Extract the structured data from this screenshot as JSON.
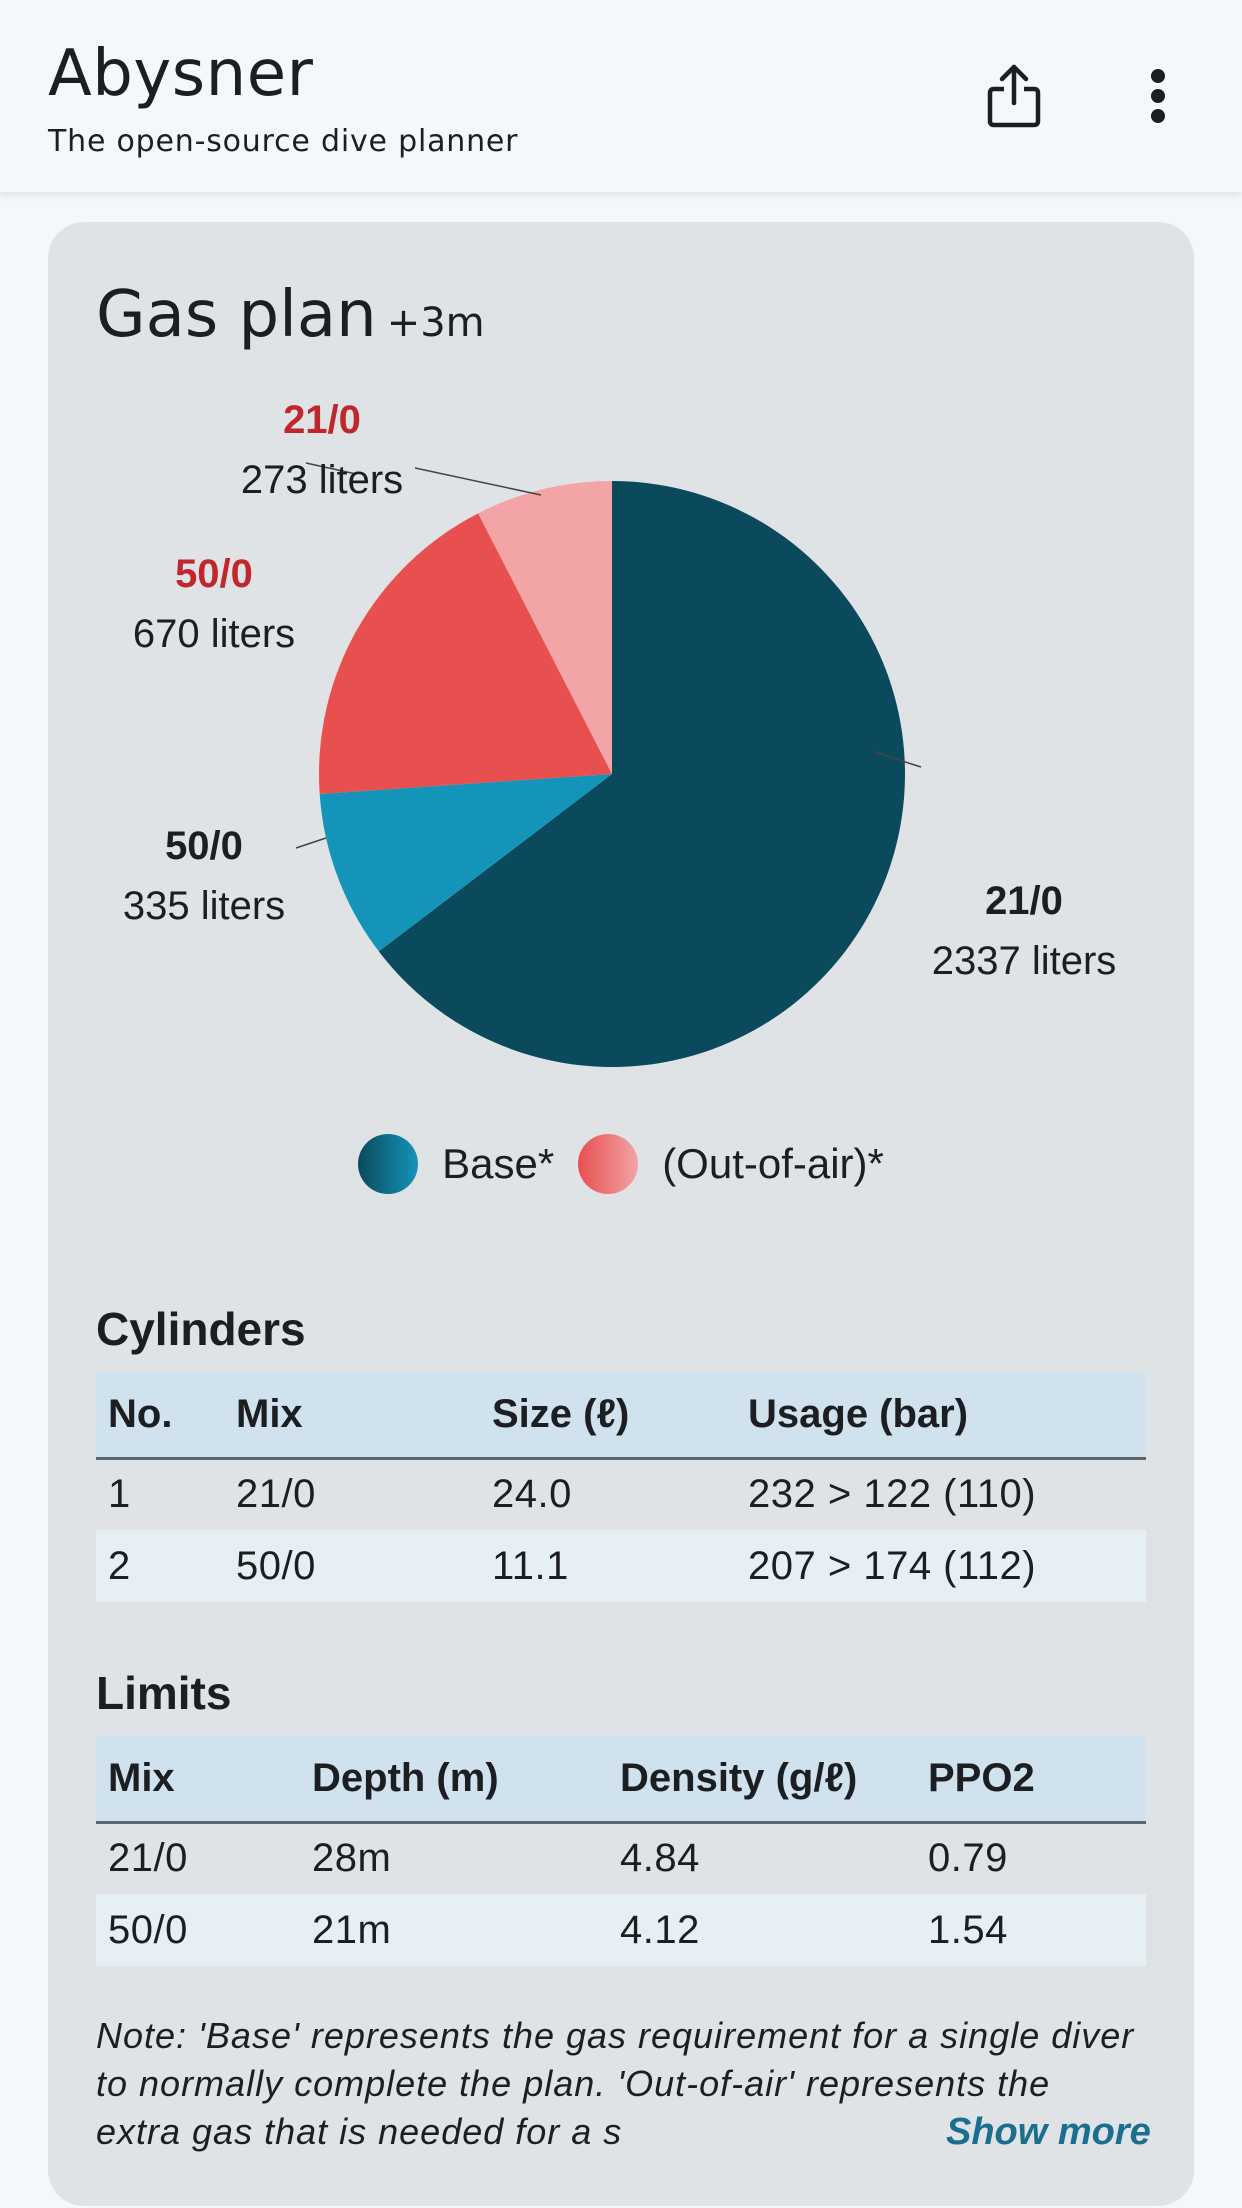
{
  "appbar": {
    "title": "Abysner",
    "subtitle": "The open-source dive planner",
    "share_icon": "share-icon",
    "more_icon": "more-vert-icon"
  },
  "card": {
    "title": "Gas plan",
    "title_suffix": "+3m"
  },
  "chart_data": {
    "type": "pie",
    "unit": "liters",
    "slices": [
      {
        "label": "21/0",
        "value": 2337,
        "value_text": "2337 liters",
        "group": "Base*",
        "color": "#0a4a5c",
        "label_color": "#1c1e21"
      },
      {
        "label": "50/0",
        "value": 335,
        "value_text": "335 liters",
        "group": "Base*",
        "color": "#1594ba",
        "label_color": "#1c1e21"
      },
      {
        "label": "50/0",
        "value": 670,
        "value_text": "670 liters",
        "group": "(Out-of-air)*",
        "color": "#e84f4f",
        "label_color": "#c0262b"
      },
      {
        "label": "21/0",
        "value": 273,
        "value_text": "273 liters",
        "group": "(Out-of-air)*",
        "color": "#f2a4a6",
        "label_color": "#c0262b"
      }
    ],
    "legend": [
      {
        "label": "Base*",
        "color_from": "#0a4a5c",
        "color_to": "#1594ba"
      },
      {
        "label": "(Out-of-air)*",
        "color_from": "#e84f4f",
        "color_to": "#f2a4a6"
      }
    ]
  },
  "cylinders": {
    "title": "Cylinders",
    "headers": [
      "No.",
      "Mix",
      "Size (ℓ)",
      "Usage (bar)"
    ],
    "rows": [
      [
        "1",
        "21/0",
        "24.0",
        "232 > 122 (110)"
      ],
      [
        "2",
        "50/0",
        "11.1",
        "207 > 174 (112)"
      ]
    ]
  },
  "limits": {
    "title": "Limits",
    "headers": [
      "Mix",
      "Depth (m)",
      "Density (g/ℓ)",
      "PPO2"
    ],
    "rows": [
      [
        "21/0",
        "28m",
        "4.84",
        "0.79"
      ],
      [
        "50/0",
        "21m",
        "4.12",
        "1.54"
      ]
    ]
  },
  "note": {
    "text": "Note: 'Base' represents the gas requirement for a single diver to normally complete the plan. 'Out-of-air' represents the extra gas that is needed for a s",
    "show_more": "Show more"
  }
}
